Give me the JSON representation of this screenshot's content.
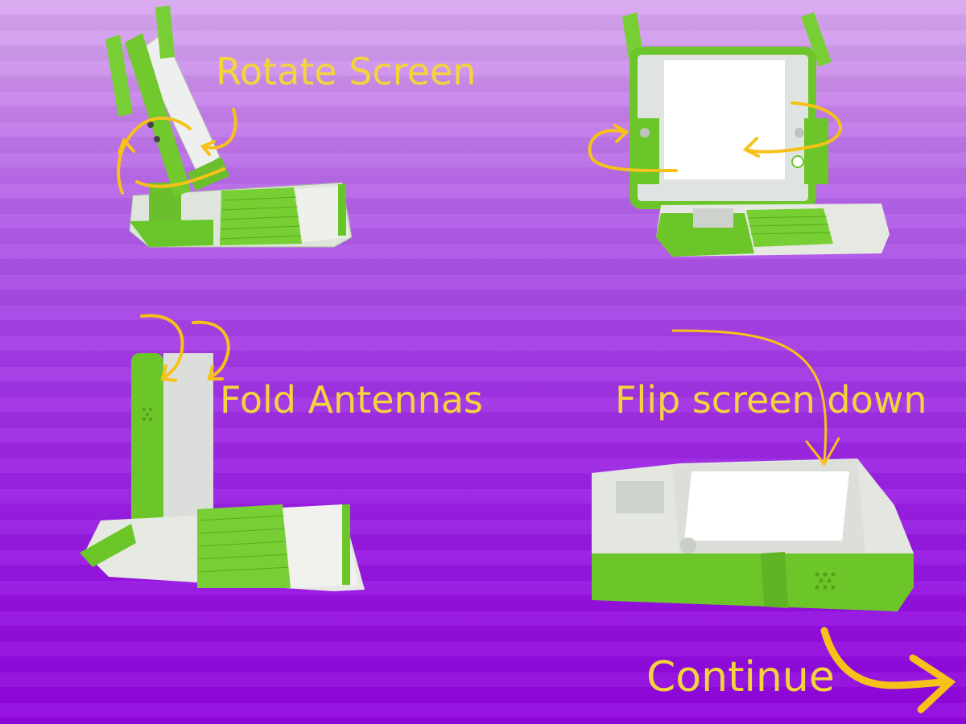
{
  "steps": {
    "rotate": {
      "label": "Rotate Screen"
    },
    "fold": {
      "label": "Fold Antennas"
    },
    "flip": {
      "label": "Flip screen down"
    }
  },
  "nav": {
    "continue_label": "Continue"
  },
  "colors": {
    "label_yellow": "#f4d43c",
    "arrow_yellow": "#f6c21a",
    "laptop_green": "#6cc62a",
    "background_top": "#d9a9f0",
    "background_bottom": "#8f06dd"
  }
}
